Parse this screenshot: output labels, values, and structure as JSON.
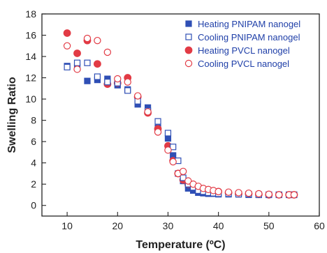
{
  "chart_data": {
    "type": "scatter",
    "title": "",
    "xlabel": "Temperature (ºC)",
    "ylabel": "Swelling Ratio",
    "xlim": [
      5,
      60
    ],
    "ylim": [
      -1,
      18
    ],
    "xticks": [
      10,
      20,
      30,
      40,
      50,
      60
    ],
    "yticks": [
      0,
      2,
      4,
      6,
      8,
      10,
      12,
      14,
      16,
      18
    ],
    "grid": false,
    "legend_position": "top-right",
    "series": [
      {
        "name": "Heating PNIPAM nanogel",
        "marker": "filled-square",
        "color": "#2f4fb5",
        "x": [
          10,
          12,
          14,
          16,
          18,
          20,
          22,
          24,
          26,
          28,
          30,
          31,
          32,
          33,
          34,
          35,
          36,
          37,
          38,
          39,
          40,
          42,
          44,
          46,
          48,
          50,
          52,
          54,
          55
        ],
        "y": [
          13.1,
          13.0,
          11.7,
          11.8,
          11.9,
          11.3,
          10.9,
          9.5,
          9.2,
          7.3,
          6.3,
          4.7,
          3.0,
          2.3,
          1.6,
          1.4,
          1.2,
          1.15,
          1.1,
          1.1,
          1.05,
          1.05,
          1.05,
          1.0,
          1.0,
          1.0,
          1.0,
          1.0,
          1.0
        ]
      },
      {
        "name": "Cooling PNIPAM nanogel",
        "marker": "open-square",
        "color": "#2f4fb5",
        "x": [
          10,
          12,
          14,
          16,
          18,
          20,
          22,
          24,
          26,
          28,
          30,
          31,
          32,
          33,
          34,
          35,
          36,
          37,
          38,
          39,
          40,
          42,
          44,
          46,
          48,
          50,
          52,
          54,
          55
        ],
        "y": [
          13.0,
          13.4,
          13.4,
          12.1,
          11.6,
          11.5,
          10.8,
          9.8,
          8.9,
          7.9,
          6.8,
          5.5,
          4.2,
          2.6,
          2.0,
          1.7,
          1.4,
          1.3,
          1.2,
          1.15,
          1.1,
          1.1,
          1.05,
          1.05,
          1.0,
          1.0,
          1.0,
          1.0,
          1.0
        ]
      },
      {
        "name": "Heating PVCL nanogel",
        "marker": "filled-circle",
        "color": "#e23b45",
        "x": [
          10,
          12,
          14,
          16,
          18,
          20,
          22,
          24,
          26,
          28,
          30,
          31,
          32,
          33,
          34,
          35,
          36,
          37,
          38,
          39,
          40,
          42,
          44,
          46,
          48,
          50,
          52,
          54,
          55
        ],
        "y": [
          16.2,
          14.3,
          15.5,
          13.3,
          11.4,
          11.5,
          12.0,
          10.2,
          8.7,
          7.2,
          5.6,
          4.2,
          3.0,
          2.4,
          2.0,
          1.8,
          1.6,
          1.5,
          1.4,
          1.3,
          1.3,
          1.2,
          1.1,
          1.1,
          1.05,
          1.0,
          1.0,
          1.0,
          1.0
        ]
      },
      {
        "name": "Cooling PVCL nanogel",
        "marker": "open-circle",
        "color": "#e23b45",
        "x": [
          10,
          12,
          14,
          16,
          18,
          20,
          22,
          24,
          26,
          28,
          30,
          31,
          32,
          33,
          34,
          35,
          36,
          37,
          38,
          39,
          40,
          42,
          44,
          46,
          48,
          50,
          52,
          54,
          55
        ],
        "y": [
          15.0,
          12.8,
          15.7,
          15.5,
          14.4,
          11.9,
          11.6,
          10.3,
          8.8,
          6.9,
          5.2,
          4.1,
          3.0,
          3.2,
          2.3,
          2.0,
          1.8,
          1.6,
          1.5,
          1.4,
          1.3,
          1.25,
          1.2,
          1.15,
          1.1,
          1.05,
          1.0,
          1.0,
          1.0
        ]
      }
    ]
  }
}
